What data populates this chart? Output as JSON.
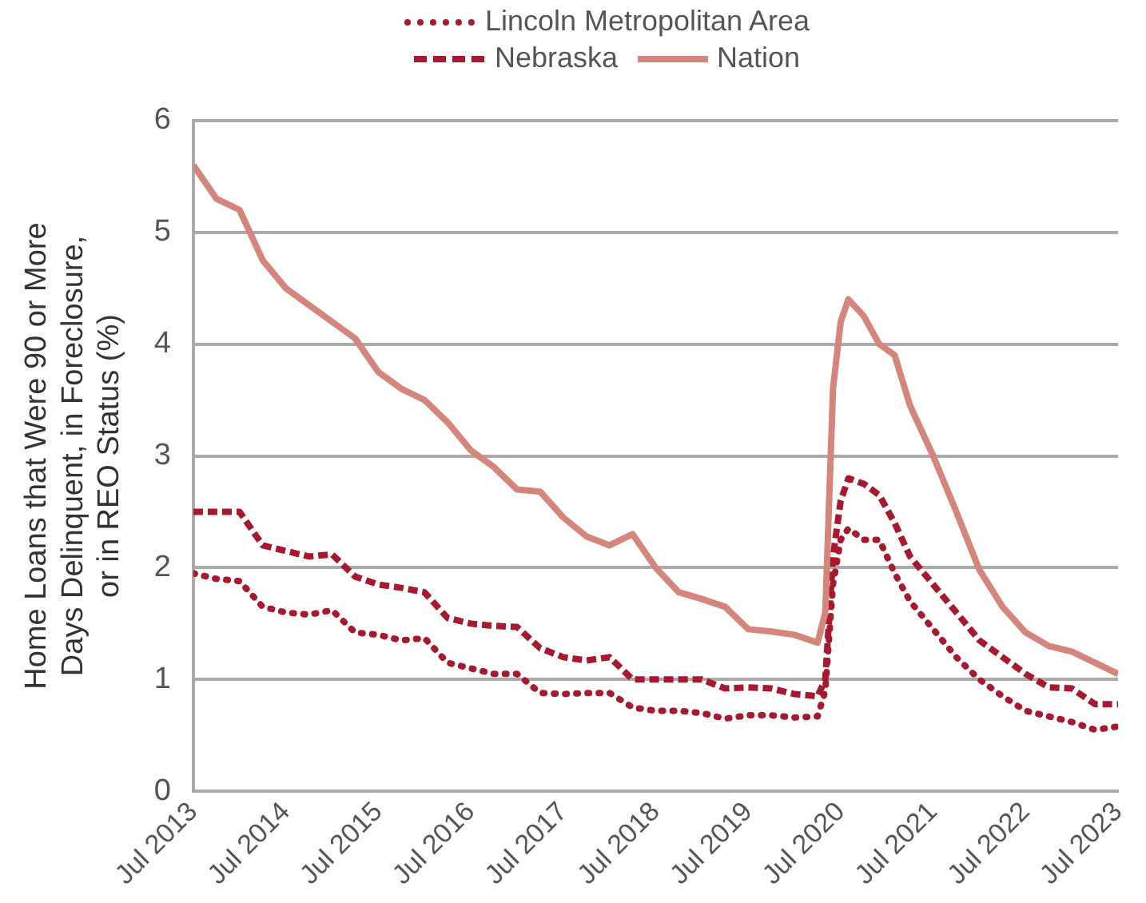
{
  "chart_data": {
    "type": "line",
    "ylabel": "Home Loans that Were 90 or More\nDays Delinquent, in Foreclosure,\nor in REO Status (%)",
    "x": [
      "2013-07",
      "2013-10",
      "2014-01",
      "2014-04",
      "2014-07",
      "2014-10",
      "2015-01",
      "2015-04",
      "2015-07",
      "2015-10",
      "2016-01",
      "2016-04",
      "2016-07",
      "2016-10",
      "2017-01",
      "2017-04",
      "2017-07",
      "2017-10",
      "2018-01",
      "2018-04",
      "2018-07",
      "2018-10",
      "2019-01",
      "2019-04",
      "2019-07",
      "2019-10",
      "2020-01",
      "2020-04",
      "2020-05",
      "2020-06",
      "2020-07",
      "2020-08",
      "2020-10",
      "2020-12",
      "2021-02",
      "2021-04",
      "2021-07",
      "2021-10",
      "2022-01",
      "2022-04",
      "2022-07",
      "2022-10",
      "2023-01",
      "2023-04",
      "2023-07"
    ],
    "series": [
      {
        "name": "Lincoln Metropolitan Area",
        "color": "#a6192e",
        "line_style": "dotted",
        "values": [
          1.95,
          1.9,
          1.88,
          1.65,
          1.6,
          1.58,
          1.62,
          1.42,
          1.4,
          1.35,
          1.37,
          1.15,
          1.1,
          1.05,
          1.05,
          0.88,
          0.87,
          0.88,
          0.88,
          0.75,
          0.72,
          0.72,
          0.7,
          0.65,
          0.68,
          0.68,
          0.66,
          0.67,
          0.9,
          1.85,
          2.25,
          2.35,
          2.25,
          2.25,
          1.95,
          1.7,
          1.45,
          1.2,
          1.0,
          0.85,
          0.72,
          0.67,
          0.62,
          0.55,
          0.58
        ]
      },
      {
        "name": "Nebraska",
        "color": "#a6192e",
        "line_style": "dashed",
        "values": [
          2.5,
          2.5,
          2.5,
          2.2,
          2.15,
          2.1,
          2.12,
          1.92,
          1.85,
          1.82,
          1.78,
          1.55,
          1.5,
          1.48,
          1.47,
          1.28,
          1.2,
          1.17,
          1.2,
          1.0,
          1.0,
          1.0,
          1.0,
          0.92,
          0.93,
          0.92,
          0.87,
          0.85,
          1.0,
          2.1,
          2.6,
          2.8,
          2.75,
          2.65,
          2.4,
          2.1,
          1.85,
          1.6,
          1.35,
          1.2,
          1.05,
          0.93,
          0.92,
          0.78,
          0.78
        ]
      },
      {
        "name": "Nation",
        "color": "#d4857c",
        "line_style": "solid",
        "values": [
          5.6,
          5.3,
          5.2,
          4.75,
          4.5,
          4.35,
          4.2,
          4.05,
          3.75,
          3.6,
          3.5,
          3.3,
          3.05,
          2.9,
          2.7,
          2.68,
          2.45,
          2.28,
          2.2,
          2.3,
          2.0,
          1.78,
          1.72,
          1.65,
          1.45,
          1.43,
          1.4,
          1.33,
          1.6,
          3.6,
          4.2,
          4.4,
          4.25,
          4.0,
          3.9,
          3.45,
          3.0,
          2.5,
          1.98,
          1.65,
          1.42,
          1.3,
          1.25,
          1.15,
          1.05
        ]
      }
    ],
    "xlim": [
      "2013-07",
      "2023-07"
    ],
    "xticks": [
      {
        "value": "2013-07",
        "label": "Jul 2013"
      },
      {
        "value": "2014-07",
        "label": "Jul 2014"
      },
      {
        "value": "2015-07",
        "label": "Jul 2015"
      },
      {
        "value": "2016-07",
        "label": "Jul 2016"
      },
      {
        "value": "2017-07",
        "label": "Jul 2017"
      },
      {
        "value": "2018-07",
        "label": "Jul 2018"
      },
      {
        "value": "2019-07",
        "label": "Jul 2019"
      },
      {
        "value": "2020-07",
        "label": "Jul 2020"
      },
      {
        "value": "2021-07",
        "label": "Jul 2021"
      },
      {
        "value": "2022-07",
        "label": "Jul 2022"
      },
      {
        "value": "2023-07",
        "label": "Jul 2023"
      }
    ],
    "ylim": [
      0,
      6
    ],
    "yticks": [
      0,
      1,
      2,
      3,
      4,
      5,
      6
    ],
    "grid": "y",
    "legend": "top",
    "marker": "none"
  }
}
